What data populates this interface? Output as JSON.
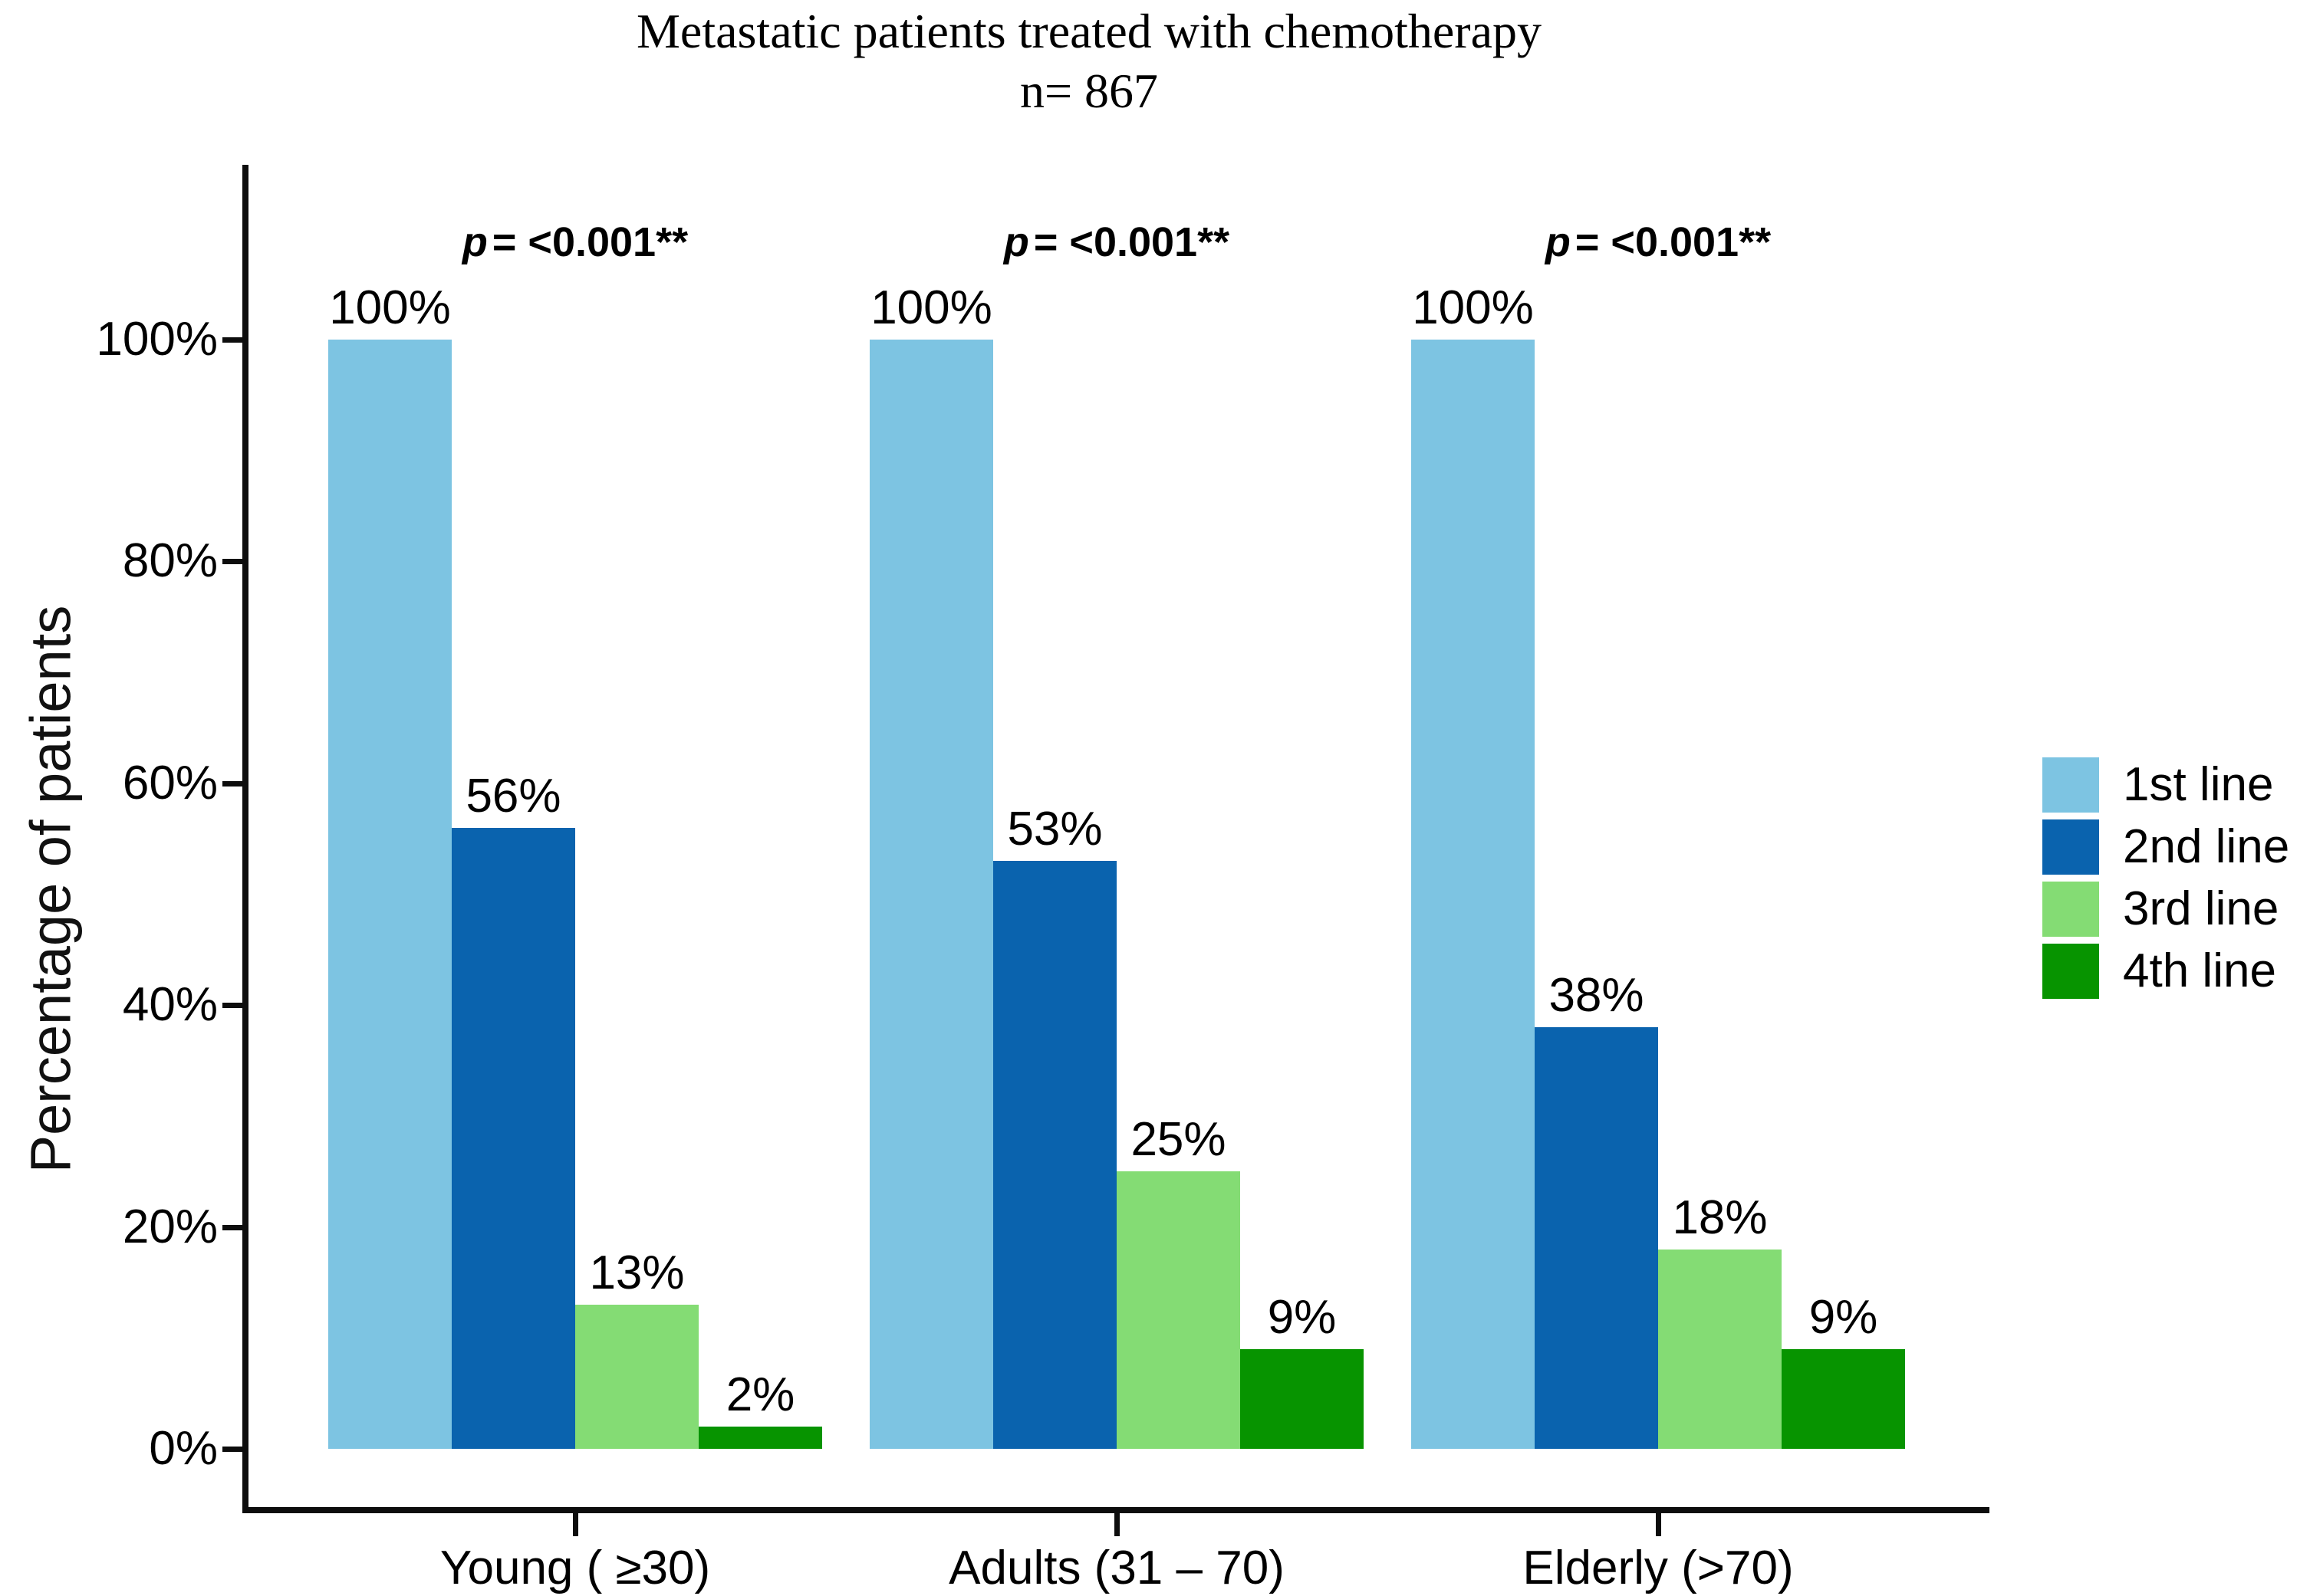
{
  "chart_data": {
    "type": "bar",
    "title": "Metastatic patients treated with chemotherapy",
    "subtitle": "n= 867",
    "n_label": "n= 867",
    "xlabel": "",
    "ylabel": "Percentage of patients",
    "ylim": [
      0,
      100
    ],
    "yticks": [
      0,
      20,
      40,
      60,
      80,
      100
    ],
    "ytick_suffix": "%",
    "grid": false,
    "legend_position": "right",
    "categories": [
      "Young ( ≥30)",
      "Adults (31 – 70)",
      "Elderly (>70)"
    ],
    "series": [
      {
        "name": "1st line",
        "color": "#7dc4e2",
        "values": [
          100,
          100,
          100
        ]
      },
      {
        "name": "2nd line",
        "color": "#0a63ae",
        "values": [
          56,
          53,
          38
        ]
      },
      {
        "name": "3rd line",
        "color": "#84dc74",
        "values": [
          13,
          25,
          18
        ]
      },
      {
        "name": "4th line",
        "color": "#079400",
        "values": [
          2,
          9,
          9
        ]
      }
    ],
    "value_label_suffix": "%",
    "annotations": [
      {
        "category": "Young ( ≥30)",
        "italic": "p",
        "text": "= <0.001**"
      },
      {
        "category": "Adults (31 – 70)",
        "italic": "p",
        "text": "= <0.001**"
      },
      {
        "category": "Elderly (>70)",
        "italic": "p",
        "text": "= <0.001**"
      }
    ],
    "colors": {
      "axis": "#0d0d0d",
      "text": "#000000",
      "background": "#ffffff"
    }
  }
}
